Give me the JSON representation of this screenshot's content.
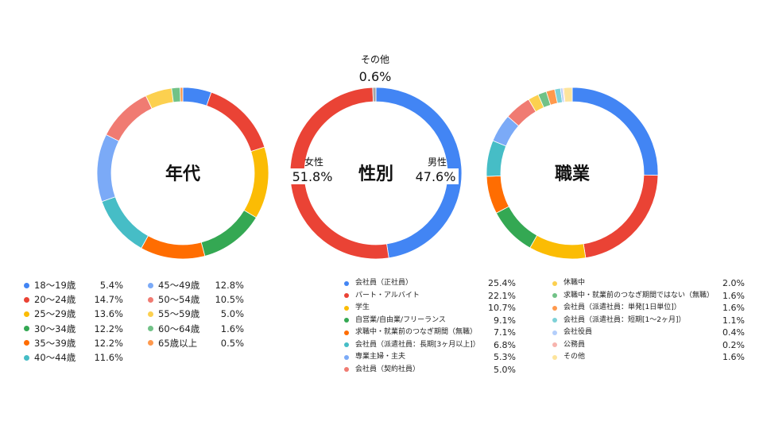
{
  "chart_data": [
    {
      "type": "pie",
      "title": "年代",
      "slices": [
        {
          "label": "18〜19歳",
          "value": 5.4,
          "display": "5.4%",
          "color": "#4285f4"
        },
        {
          "label": "20〜24歳",
          "value": 14.7,
          "display": "14.7%",
          "color": "#ea4335"
        },
        {
          "label": "25〜29歳",
          "value": 13.6,
          "display": "13.6%",
          "color": "#fbbc04"
        },
        {
          "label": "30〜34歳",
          "value": 12.2,
          "display": "12.2%",
          "color": "#34a853"
        },
        {
          "label": "35〜39歳",
          "value": 12.2,
          "display": "12.2%",
          "color": "#ff6d01"
        },
        {
          "label": "40〜44歳",
          "value": 11.6,
          "display": "11.6%",
          "color": "#46bdc6"
        },
        {
          "label": "45〜49歳",
          "value": 12.8,
          "display": "12.8%",
          "color": "#7baaf7"
        },
        {
          "label": "50〜54歳",
          "value": 10.5,
          "display": "10.5%",
          "color": "#f07b72"
        },
        {
          "label": "55〜59歳",
          "value": 5.0,
          "display": "5.0%",
          "color": "#fcd04f"
        },
        {
          "label": "60〜64歳",
          "value": 1.6,
          "display": "1.6%",
          "color": "#71c287"
        },
        {
          "label": "65歳以上",
          "value": 0.5,
          "display": "0.5%",
          "color": "#ff994d"
        }
      ]
    },
    {
      "type": "pie",
      "title": "性別",
      "slices": [
        {
          "label": "男性",
          "value": 47.6,
          "display": "47.6%",
          "color": "#4285f4"
        },
        {
          "label": "女性",
          "value": 51.8,
          "display": "51.8%",
          "color": "#ea4335"
        },
        {
          "label": "その他",
          "value": 0.6,
          "display": "0.6%",
          "color": "#a5a5a5"
        }
      ]
    },
    {
      "type": "pie",
      "title": "職業",
      "slices": [
        {
          "label": "会社員（正社員）",
          "value": 25.4,
          "display": "25.4%",
          "color": "#4285f4"
        },
        {
          "label": "パート・アルバイト",
          "value": 22.1,
          "display": "22.1%",
          "color": "#ea4335"
        },
        {
          "label": "学生",
          "value": 10.7,
          "display": "10.7%",
          "color": "#fbbc04"
        },
        {
          "label": "自営業/自由業/フリーランス",
          "value": 9.1,
          "display": "9.1%",
          "color": "#34a853"
        },
        {
          "label": "求職中・就業前のつなぎ期間（無職）",
          "value": 7.1,
          "display": "7.1%",
          "color": "#ff6d01"
        },
        {
          "label": "会社員（派遣社員：長期[3ヶ月以上]）",
          "value": 6.8,
          "display": "6.8%",
          "color": "#46bdc6"
        },
        {
          "label": "専業主婦・主夫",
          "value": 5.3,
          "display": "5.3%",
          "color": "#7baaf7"
        },
        {
          "label": "会社員（契約社員）",
          "value": 5.0,
          "display": "5.0%",
          "color": "#f07b72"
        },
        {
          "label": "休職中",
          "value": 2.0,
          "display": "2.0%",
          "color": "#fcd04f"
        },
        {
          "label": "求職中・就業前のつなぎ期間ではない（無職）",
          "value": 1.6,
          "display": "1.6%",
          "color": "#71c287"
        },
        {
          "label": "会社員（派遣社員：単発[1日単位]）",
          "value": 1.6,
          "display": "1.6%",
          "color": "#ff994d"
        },
        {
          "label": "会社員（派遣社員：短期[1〜2ヶ月]）",
          "value": 1.1,
          "display": "1.1%",
          "color": "#7ed1d7"
        },
        {
          "label": "会社役員",
          "value": 0.4,
          "display": "0.4%",
          "color": "#b3cefb"
        },
        {
          "label": "公務員",
          "value": 0.2,
          "display": "0.2%",
          "color": "#f7b4ae"
        },
        {
          "label": "その他",
          "value": 1.6,
          "display": "1.6%",
          "color": "#fde49b"
        }
      ]
    }
  ]
}
